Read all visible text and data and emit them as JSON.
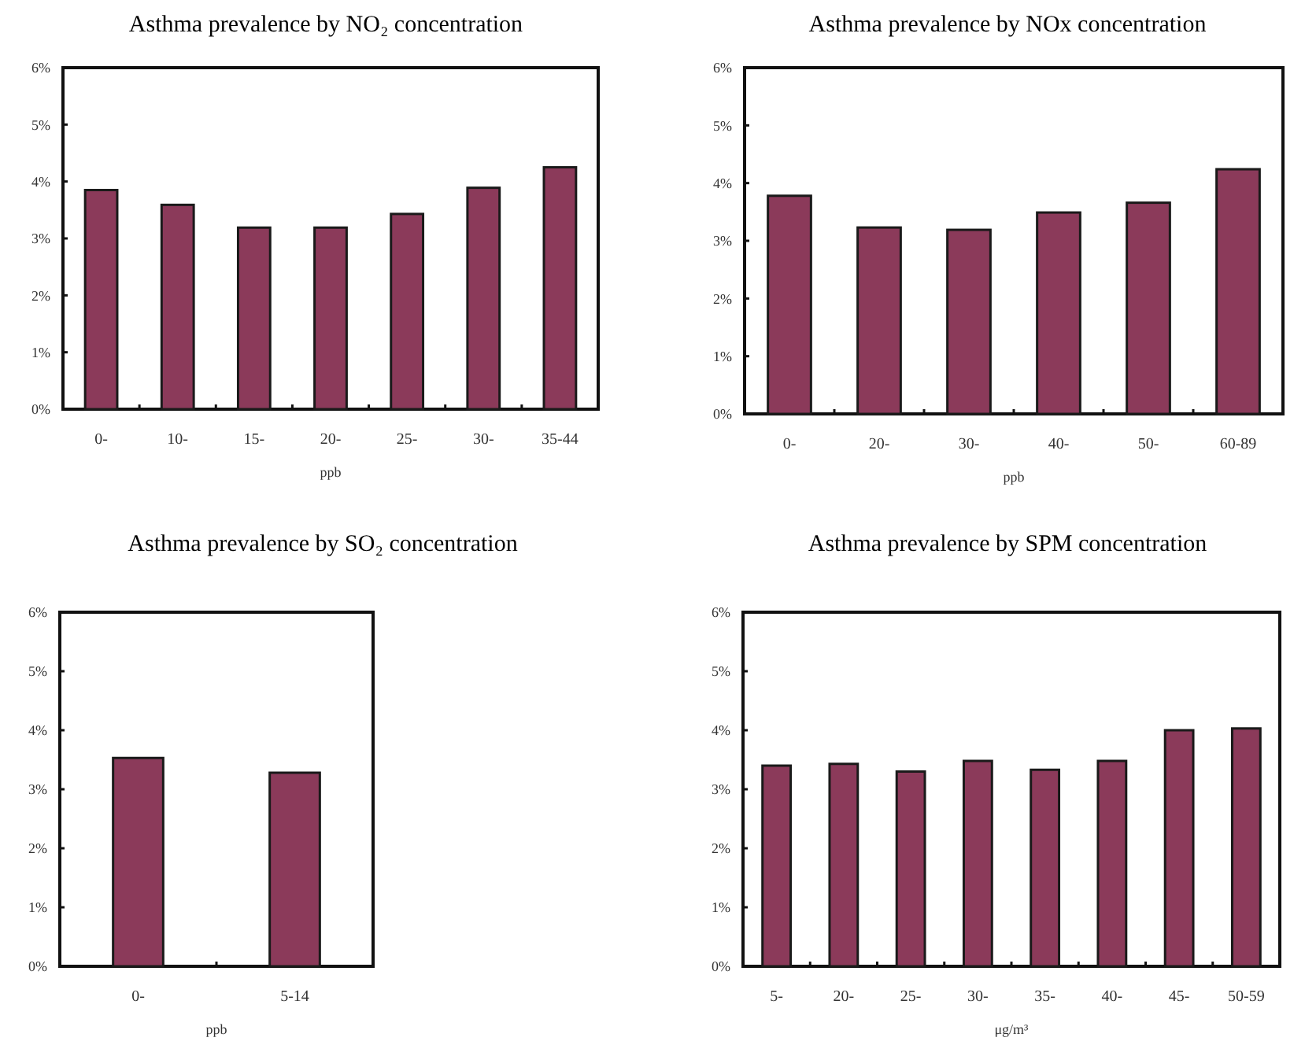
{
  "chart_data": [
    {
      "type": "bar",
      "title": "Asthma prevalence by NO₂ concentration",
      "xlabel": "ppb",
      "categories": [
        "0-",
        "10-",
        "15-",
        "20-",
        "25-",
        "30-",
        "35-44"
      ],
      "values": [
        3.85,
        3.59,
        3.19,
        3.19,
        3.43,
        3.89,
        4.25
      ],
      "color": "#8b3a5a",
      "ylim": [
        0,
        6
      ],
      "yticks": [
        {
          "value": 0,
          "label": "0%"
        },
        {
          "value": 1,
          "label": "1%"
        },
        {
          "value": 2,
          "label": "2%"
        },
        {
          "value": 3,
          "label": "3%"
        },
        {
          "value": 4,
          "label": "4%"
        },
        {
          "value": 5,
          "label": "5%"
        },
        {
          "value": 6,
          "label": "6%"
        }
      ]
    },
    {
      "type": "bar",
      "title": "Asthma prevalence by NOx concentration",
      "xlabel": "ppb",
      "categories": [
        "0-",
        "20-",
        "30-",
        "40-",
        "50-",
        "60-89"
      ],
      "values": [
        3.78,
        3.23,
        3.19,
        3.49,
        3.66,
        4.24
      ],
      "color": "#8b3a5a",
      "ylim": [
        0,
        6
      ],
      "yticks": [
        {
          "value": 0,
          "label": "0%"
        },
        {
          "value": 1,
          "label": "1%"
        },
        {
          "value": 2,
          "label": "2%"
        },
        {
          "value": 3,
          "label": "3%"
        },
        {
          "value": 4,
          "label": "4%"
        },
        {
          "value": 5,
          "label": "5%"
        },
        {
          "value": 6,
          "label": "6%"
        }
      ]
    },
    {
      "type": "bar",
      "title": "Asthma prevalence by SO₂ concentration",
      "xlabel": "ppb",
      "categories": [
        "0-",
        "5-14"
      ],
      "values": [
        3.53,
        3.28
      ],
      "color": "#8b3a5a",
      "ylim": [
        0,
        6
      ],
      "yticks": [
        {
          "value": 0,
          "label": "0%"
        },
        {
          "value": 1,
          "label": "1%"
        },
        {
          "value": 2,
          "label": "2%"
        },
        {
          "value": 3,
          "label": "3%"
        },
        {
          "value": 4,
          "label": "4%"
        },
        {
          "value": 5,
          "label": "5%"
        },
        {
          "value": 6,
          "label": "6%"
        }
      ]
    },
    {
      "type": "bar",
      "title": "Asthma prevalence by SPM concentration",
      "xlabel": "μg/m³",
      "categories": [
        "5-",
        "20-",
        "25-",
        "30-",
        "35-",
        "40-",
        "45-",
        "50-59"
      ],
      "values": [
        3.4,
        3.43,
        3.3,
        3.48,
        3.33,
        3.48,
        4.0,
        4.03
      ],
      "color": "#8b3a5a",
      "ylim": [
        0,
        6
      ],
      "yticks": [
        {
          "value": 0,
          "label": "0%"
        },
        {
          "value": 1,
          "label": "1%"
        },
        {
          "value": 2,
          "label": "2%"
        },
        {
          "value": 3,
          "label": "3%"
        },
        {
          "value": 4,
          "label": "4%"
        },
        {
          "value": 5,
          "label": "5%"
        },
        {
          "value": 6,
          "label": "6%"
        }
      ]
    }
  ]
}
